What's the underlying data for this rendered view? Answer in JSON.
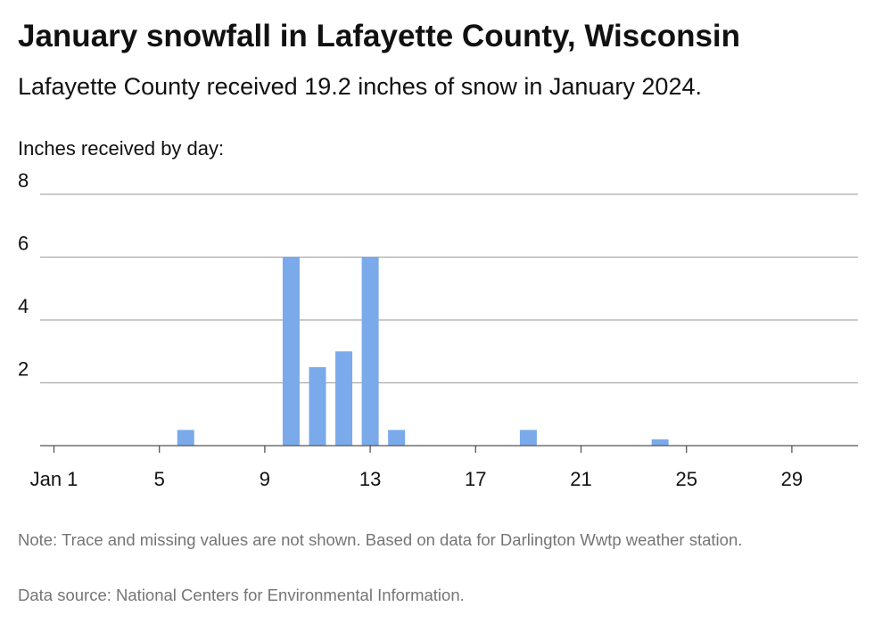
{
  "header": {
    "title": "January snowfall in Lafayette County, Wisconsin",
    "subtitle": "Lafayette County received 19.2 inches of snow in January 2024."
  },
  "footer": {
    "note": "Note: Trace and missing values are not shown. Based on data for Darlington Wwtp weather station.",
    "source": "Data source: National Centers for Environmental Information."
  },
  "colors": {
    "bar": "#7aaaea",
    "grid": "#aaaaaa",
    "axis": "#555555",
    "muted_text": "#757575"
  },
  "chart_data": {
    "type": "bar",
    "title": "January snowfall in Lafayette County, Wisconsin",
    "subtitle": "Lafayette County received 19.2 inches of snow in January 2024.",
    "ylabel": "Inches received by day:",
    "xlabel": "",
    "ylim": [
      0,
      8
    ],
    "yticks": [
      2,
      4,
      6,
      8
    ],
    "xlim": [
      1,
      31
    ],
    "xticks": [
      1,
      5,
      9,
      13,
      17,
      21,
      25,
      29
    ],
    "xtick_labels": [
      "Jan 1",
      "5",
      "9",
      "13",
      "17",
      "21",
      "25",
      "29"
    ],
    "grid": true,
    "legend": "none",
    "x": [
      6,
      10,
      11,
      12,
      13,
      14,
      19,
      24
    ],
    "values": [
      0.5,
      6.0,
      2.5,
      3.0,
      6.0,
      0.5,
      0.5,
      0.2
    ]
  }
}
